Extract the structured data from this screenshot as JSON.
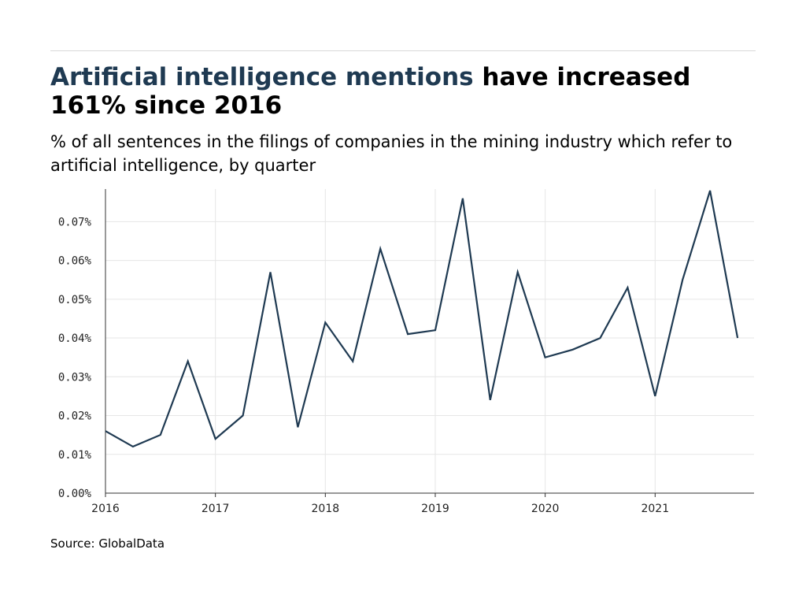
{
  "title": {
    "highlight": "Artificial intelligence mentions",
    "rest": " have increased 161% since 2016"
  },
  "subtitle": "% of all sentences in the filings of companies in the mining industry which refer to artificial intelligence, by quarter",
  "source": "Source: GlobalData",
  "colors": {
    "line": "#1f3a52",
    "highlight": "#1f3a52",
    "grid": "#e6e6e6"
  },
  "chart_data": {
    "type": "line",
    "title": "Artificial intelligence mentions have increased 161% since 2016",
    "subtitle": "% of all sentences in the filings of companies in the mining industry which refer to artificial intelligence, by quarter",
    "xlabel": "",
    "ylabel": "",
    "grid": true,
    "xlim": [
      2016,
      2021.9
    ],
    "ylim": [
      0,
      0.0784
    ],
    "x_ticks": [
      2016,
      2017,
      2018,
      2019,
      2020,
      2021
    ],
    "x_tick_labels": [
      "2016",
      "2017",
      "2018",
      "2019",
      "2020",
      "2021"
    ],
    "y_ticks": [
      0,
      0.01,
      0.02,
      0.03,
      0.04,
      0.05,
      0.06,
      0.07
    ],
    "y_tick_labels": [
      "0.00%",
      "0.01%",
      "0.02%",
      "0.03%",
      "0.04%",
      "0.05%",
      "0.06%",
      "0.07%"
    ],
    "series": [
      {
        "x": [
          2016,
          2016.25,
          2016.5,
          2016.75,
          2017,
          2017.25,
          2017.5,
          2017.75,
          2018,
          2018.25,
          2018.5,
          2018.75,
          2019,
          2019.25,
          2019.5,
          2019.75,
          2020,
          2020.25,
          2020.5,
          2020.75,
          2021,
          2021.25,
          2021.5,
          2021.75
        ],
        "values": [
          0.016,
          0.012,
          0.015,
          0.034,
          0.014,
          0.02,
          0.057,
          0.017,
          0.044,
          0.034,
          0.063,
          0.041,
          0.042,
          0.076,
          0.024,
          0.057,
          0.035,
          0.037,
          0.04,
          0.053,
          0.025,
          0.055,
          0.078,
          0.04
        ]
      }
    ]
  }
}
